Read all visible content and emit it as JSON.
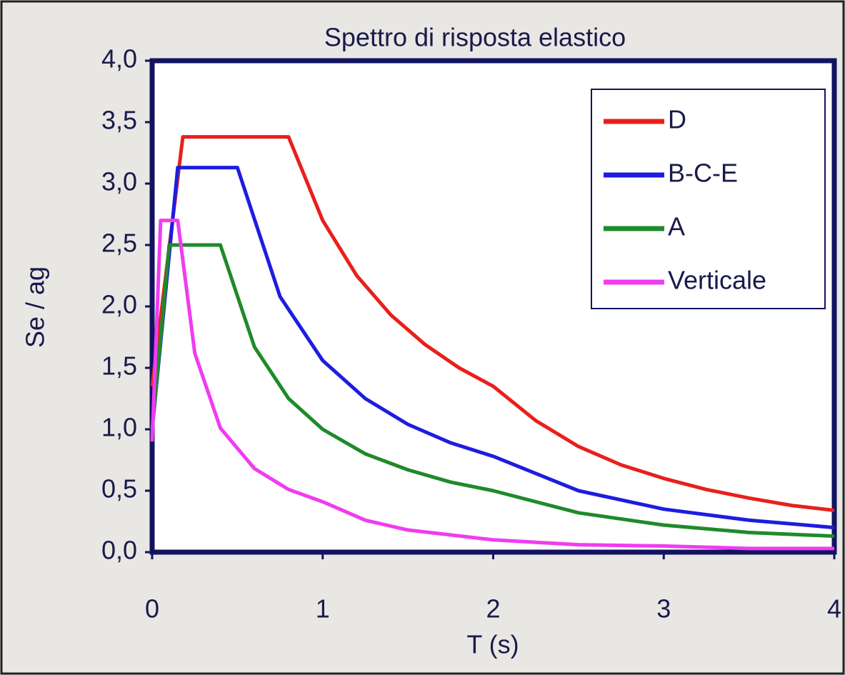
{
  "chart_data": {
    "type": "line",
    "title": "Spettro di risposta elastico",
    "x_label": "T (s)",
    "y_label": "Se / ag",
    "xlim": [
      0,
      4
    ],
    "xticks": [
      0,
      1,
      2,
      3,
      4
    ],
    "ylim": [
      0,
      4
    ],
    "yticks": [
      {
        "value": 0,
        "label": "0,0"
      },
      {
        "value": 0.5,
        "label": "0,5"
      },
      {
        "value": 1,
        "label": "1,0"
      },
      {
        "value": 1.5,
        "label": "1,5"
      },
      {
        "value": 2,
        "label": "2,0"
      },
      {
        "value": 2.5,
        "label": "2,5"
      },
      {
        "value": 3,
        "label": "3,0"
      },
      {
        "value": 3.5,
        "label": "3,5"
      },
      {
        "value": 4,
        "label": "4,0"
      }
    ],
    "legend": "upper right",
    "series": [
      {
        "name": "D",
        "color": "#e8201c",
        "x": [
          0,
          0.18,
          0.8,
          1,
          1.2,
          1.4,
          1.6,
          1.8,
          2,
          2.25,
          2.5,
          2.75,
          3,
          3.25,
          3.5,
          3.75,
          4
        ],
        "values": [
          1.35,
          3.38,
          3.38,
          2.7,
          2.25,
          1.93,
          1.69,
          1.5,
          1.35,
          1.07,
          0.86,
          0.71,
          0.6,
          0.51,
          0.44,
          0.38,
          0.34
        ]
      },
      {
        "name": "B-C-E",
        "color": "#1d1de0",
        "x": [
          0,
          0.15,
          0.5,
          0.75,
          1,
          1.25,
          1.5,
          1.75,
          2,
          2.5,
          3,
          3.5,
          4
        ],
        "values": [
          1.0,
          3.13,
          3.13,
          2.08,
          1.56,
          1.25,
          1.04,
          0.89,
          0.78,
          0.5,
          0.35,
          0.26,
          0.2
        ]
      },
      {
        "name": "A",
        "color": "#1f8a2a",
        "x": [
          0,
          0.1,
          0.4,
          0.6,
          0.8,
          1,
          1.25,
          1.5,
          1.75,
          2,
          2.5,
          3,
          3.5,
          4
        ],
        "values": [
          1.0,
          2.5,
          2.5,
          1.67,
          1.25,
          1.0,
          0.8,
          0.67,
          0.57,
          0.5,
          0.32,
          0.22,
          0.16,
          0.13
        ]
      },
      {
        "name": "Verticale",
        "color": "#f03cf0",
        "x": [
          0,
          0.05,
          0.15,
          0.25,
          0.4,
          0.6,
          0.8,
          1,
          1.25,
          1.5,
          2,
          2.5,
          3,
          3.5,
          4
        ],
        "values": [
          0.9,
          2.7,
          2.7,
          1.62,
          1.01,
          0.68,
          0.51,
          0.41,
          0.26,
          0.18,
          0.1,
          0.06,
          0.05,
          0.03,
          0.03
        ]
      }
    ]
  }
}
